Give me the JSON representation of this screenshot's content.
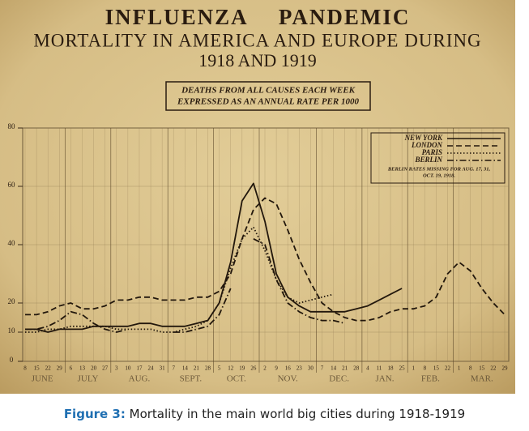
{
  "chart_data": {
    "type": "line",
    "title": "INFLUENZA PANDEMIC",
    "subtitle": [
      "MORTALITY IN AMERICA AND EUROPE DURING",
      "1918 AND 1919"
    ],
    "ylabel": [
      "DEATHS FROM ALL CAUSES EACH WEEK",
      "EXPRESSED AS AN ANNUAL RATE PER 1000"
    ],
    "categories": [
      "8",
      "15",
      "22",
      "29",
      "6",
      "13",
      "20",
      "27",
      "3",
      "10",
      "17",
      "24",
      "31",
      "7",
      "14",
      "21",
      "28",
      "5",
      "12",
      "19",
      "26",
      "2",
      "9",
      "16",
      "23",
      "30",
      "7",
      "14",
      "21",
      "28",
      "4",
      "11",
      "18",
      "25",
      "1",
      "8",
      "15",
      "22",
      "1",
      "8",
      "15",
      "22",
      "29"
    ],
    "months": [
      "JUNE",
      "JULY",
      "AUG.",
      "SEPT.",
      "OCT.",
      "NOV.",
      "DEC.",
      "JAN.",
      "FEB.",
      "MAR."
    ],
    "ylim": [
      0,
      80
    ],
    "yticks": [
      0,
      10,
      20,
      40,
      60,
      80
    ],
    "grid": true,
    "legend_position": "upper right",
    "legend_note": [
      "BERLIN RATES MISSING FOR AUG. 17, 31,",
      "OCT. 19, 1918."
    ],
    "series": [
      {
        "name": "NEW YORK",
        "color": "#22170c",
        "style": "solid",
        "values": [
          11,
          11,
          10,
          11,
          11,
          11,
          12,
          12,
          12,
          12,
          13,
          13,
          12,
          12,
          12,
          13,
          14,
          20,
          34,
          55,
          61,
          48,
          30,
          22,
          19,
          17,
          17,
          17,
          17,
          18,
          19,
          21,
          23,
          25,
          null,
          null,
          null,
          null,
          null,
          null,
          null,
          null,
          null
        ]
      },
      {
        "name": "LONDON",
        "color": "#22170c",
        "style": "dashed",
        "values": [
          16,
          16,
          17,
          19,
          20,
          18,
          18,
          19,
          21,
          21,
          22,
          22,
          21,
          21,
          21,
          22,
          22,
          24,
          30,
          42,
          52,
          56,
          54,
          45,
          35,
          27,
          20,
          17,
          15,
          14,
          14,
          15,
          17,
          18,
          18,
          19,
          22,
          30,
          34,
          31,
          25,
          20,
          16
        ]
      },
      {
        "name": "PARIS",
        "color": "#22170c",
        "style": "dotted",
        "values": [
          10,
          10,
          11,
          11,
          12,
          12,
          12,
          12,
          11,
          11,
          11,
          11,
          10,
          10,
          11,
          12,
          14,
          20,
          32,
          42,
          46,
          38,
          28,
          22,
          20,
          21,
          22,
          23,
          null,
          null,
          null,
          null,
          null,
          null,
          null,
          null,
          null,
          null,
          null,
          null,
          null,
          null,
          null
        ]
      },
      {
        "name": "BERLIN",
        "color": "#22170c",
        "style": "dash-dot",
        "values": [
          11,
          11,
          12,
          14,
          17,
          16,
          13,
          11,
          10,
          11,
          null,
          10,
          null,
          10,
          10,
          11,
          12,
          16,
          25,
          null,
          42,
          40,
          28,
          20,
          17,
          15,
          14,
          14,
          13,
          null,
          null,
          null,
          null,
          null,
          null,
          null,
          null,
          null,
          null,
          null,
          null,
          null,
          null
        ]
      }
    ]
  },
  "caption": {
    "label": "Figure 3:",
    "text": "Mortality in the main world big cities during 1918-1919"
  }
}
